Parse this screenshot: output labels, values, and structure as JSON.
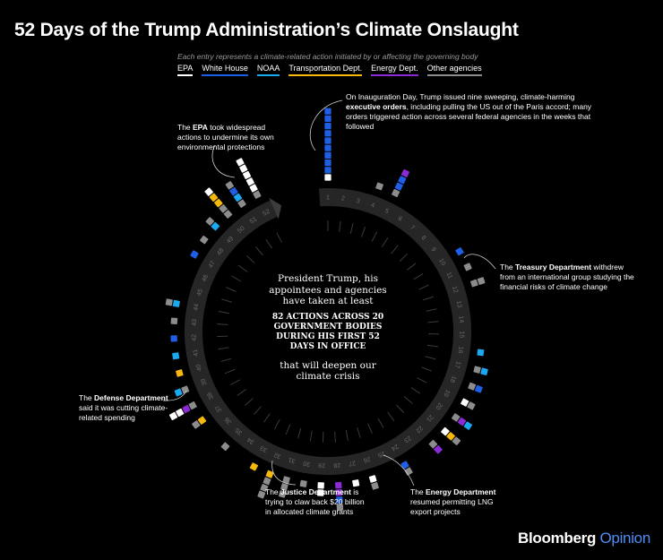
{
  "title": "52 Days of the Trump Administration’s Climate Onslaught",
  "subtitle": "Each entry represents a climate-related action initiated by or affecting the governing body",
  "legend": [
    {
      "label": "EPA",
      "color": "#ffffff"
    },
    {
      "label": "White House",
      "color": "#1f5fe6"
    },
    {
      "label": "NOAA",
      "color": "#19a9f0"
    },
    {
      "label": "Transportation Dept.",
      "color": "#f5b80f"
    },
    {
      "label": "Energy Dept.",
      "color": "#8a2bd6"
    },
    {
      "label": "Other agencies",
      "color": "#8c8c8c"
    }
  ],
  "center": {
    "line1": "President Trump, his appointees and agencies have taken at least",
    "line2": "82 ACTIONS ACROSS 20 GOVERNMENT BODIES DURING HIS FIRST 52 DAYS IN OFFICE",
    "line3": "that will deepen our climate crisis"
  },
  "annotations": {
    "inauguration": {
      "pre": "On Inauguration Day, Trump issued nine sweeping, climate-harming ",
      "bold": "executive orders",
      "post": ", including pulling the US out of the Paris accord; many orders triggered action across several federal agencies in the weeks that followed"
    },
    "epa": {
      "pre": "The ",
      "bold": "EPA",
      "post": " took widespread actions to undermine its own environmental protections"
    },
    "treasury": {
      "pre": "The ",
      "bold": "Treasury Department",
      "post": " withdrew from an international group studying the financial risks of climate change"
    },
    "defense": {
      "pre": "The ",
      "bold": "Defense Department",
      "post": " said it was cutting climate-related spending"
    },
    "justice": {
      "pre": "The ",
      "bold": "Justice Department",
      "post": " is trying to claw back $20 billion in allocated climate grants"
    },
    "energy": {
      "pre": "The ",
      "bold": "Energy Department",
      "post": " resumed permitting LNG export projects"
    }
  },
  "brand": {
    "name": "Bloomberg",
    "suffix": "Opinion"
  },
  "chart_data": {
    "type": "radial-stacked-squares",
    "days": [
      1,
      2,
      3,
      4,
      5,
      6,
      7,
      8,
      9,
      10,
      11,
      12,
      13,
      14,
      15,
      16,
      17,
      18,
      19,
      20,
      21,
      22,
      23,
      24,
      25,
      26,
      27,
      28,
      29,
      30,
      31,
      32,
      33,
      34,
      35,
      36,
      37,
      38,
      39,
      40,
      41,
      42,
      43,
      44,
      45,
      46,
      47,
      48,
      49,
      50,
      51,
      52
    ],
    "actions_per_day": [
      [
        "EPA",
        "White House",
        "White House",
        "White House",
        "White House",
        "White House",
        "White House",
        "White House",
        "White House",
        "White House"
      ],
      [],
      [],
      [
        "Other"
      ],
      [
        "Other",
        "White House",
        "White House",
        "Energy Dept."
      ],
      [],
      [],
      [],
      [],
      [
        "White House"
      ],
      [
        "Other"
      ],
      [
        "Other",
        "Other"
      ],
      [],
      [],
      [],
      [
        "NOAA"
      ],
      [
        "Other",
        "NOAA"
      ],
      [
        "Other",
        "White House"
      ],
      [
        "EPA",
        "Other"
      ],
      [
        "Other",
        "Energy Dept.",
        "NOAA"
      ],
      [
        "EPA",
        "Transportation Dept.",
        "Other"
      ],
      [
        "Other",
        "Energy Dept."
      ],
      [],
      [
        "White House",
        "Other"
      ],
      [],
      [
        "EPA",
        "Other"
      ],
      [
        "EPA"
      ],
      [
        "Energy Dept.",
        "Energy Dept.",
        "White House",
        "Other"
      ],
      [
        "EPA",
        "EPA"
      ],
      [
        "Other"
      ],
      [
        "Other",
        "Other",
        "Other"
      ],
      [
        "Transportation Dept.",
        "Other",
        "Other",
        "Other"
      ],
      [
        "Transportation Dept."
      ],
      [],
      [
        "Other"
      ],
      [],
      [
        "Transportation Dept.",
        "Other"
      ],
      [
        "Other",
        "Energy Dept.",
        "EPA",
        "EPA"
      ],
      [
        "Other",
        "NOAA"
      ],
      [
        "Transportation Dept."
      ],
      [
        "NOAA"
      ],
      [
        "White House"
      ],
      [
        "Other"
      ],
      [
        "NOAA",
        "Other"
      ],
      [],
      [],
      [
        "White House"
      ],
      [
        "Other"
      ],
      [
        "NOAA",
        "Other"
      ],
      [
        "Other",
        "Other",
        "Transportation Dept.",
        "Transportation Dept.",
        "EPA"
      ],
      [
        "Other",
        "NOAA",
        "White House",
        "Other"
      ],
      [
        "Other",
        "EPA",
        "EPA",
        "EPA",
        "EPA",
        "EPA"
      ]
    ]
  }
}
